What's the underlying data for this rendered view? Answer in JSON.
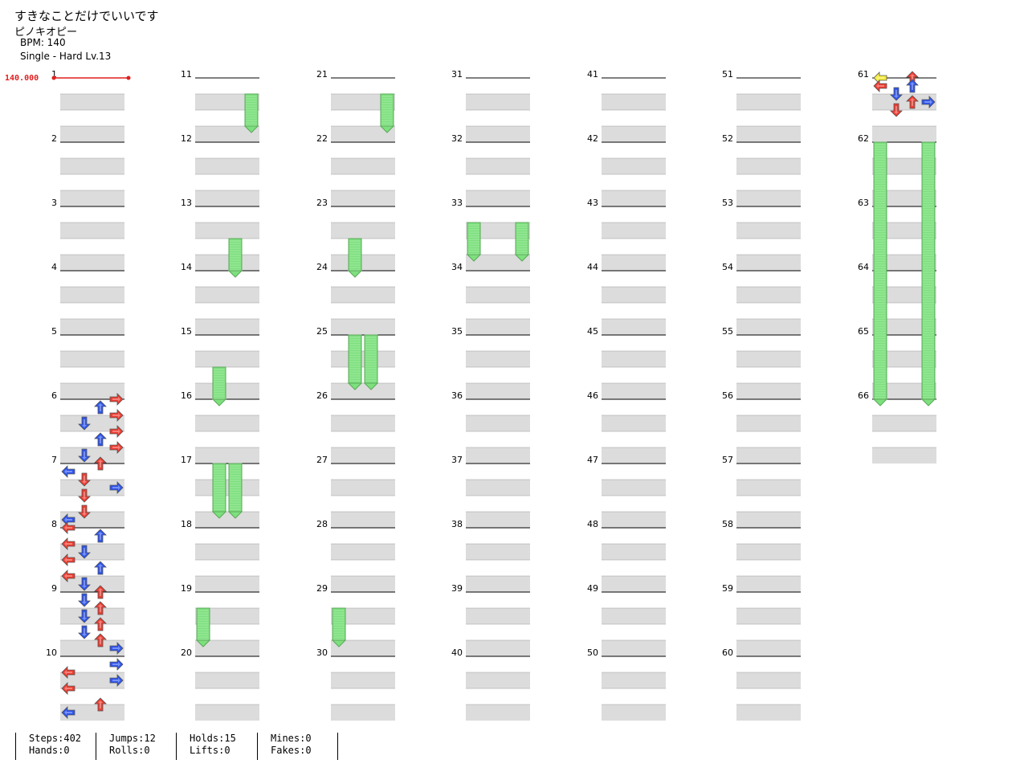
{
  "song": {
    "title": "すきなことだけでいいです",
    "artist": "ピノキオピー",
    "bpm_label": "BPM: 140",
    "difficulty_label": "Single - Hard  Lv.13"
  },
  "bpm_marker": {
    "value": "140.000"
  },
  "colors": {
    "red": "#ef3b2f",
    "blue": "#2d54ee",
    "yellow": "#f7ec3b",
    "hold": "#7de07d",
    "lane_band": "#dcdcdc",
    "measure_line": "#000000",
    "bpm_line": "#e01f1f"
  },
  "chart": {
    "measure_count": 66,
    "measures_per_column": 10,
    "lanes": [
      "left",
      "down",
      "up",
      "right"
    ],
    "arrow_icons": {
      "left": "left-arrow-icon",
      "down": "down-arrow-icon",
      "up": "up-arrow-icon",
      "right": "right-arrow-icon"
    },
    "notes_sample": [
      {
        "measure": 6,
        "beat": 0,
        "lane": "right",
        "color": "red"
      },
      {
        "measure": 6,
        "beat": 0.5,
        "lane": "up",
        "color": "blue"
      },
      {
        "measure": 6,
        "beat": 1,
        "lane": "right",
        "color": "red"
      },
      {
        "measure": 6,
        "beat": 1.5,
        "lane": "down",
        "color": "blue"
      },
      {
        "measure": 6,
        "beat": 2,
        "lane": "right",
        "color": "red"
      },
      {
        "measure": 6,
        "beat": 2.5,
        "lane": "up",
        "color": "blue"
      },
      {
        "measure": 6,
        "beat": 3,
        "lane": "right",
        "color": "red"
      },
      {
        "measure": 6,
        "beat": 3.5,
        "lane": "down",
        "color": "blue"
      },
      {
        "measure": 7,
        "beat": 0,
        "lane": "up",
        "color": "red"
      },
      {
        "measure": 7,
        "beat": 0.5,
        "lane": "left",
        "color": "blue"
      },
      {
        "measure": 7,
        "beat": 1,
        "lane": "down",
        "color": "red"
      },
      {
        "measure": 7,
        "beat": 1.5,
        "lane": "right",
        "color": "blue"
      },
      {
        "measure": 7,
        "beat": 2,
        "lane": "down",
        "color": "red"
      },
      {
        "measure": 7,
        "beat": 3,
        "lane": "down",
        "color": "red"
      },
      {
        "measure": 7,
        "beat": 3.5,
        "lane": "left",
        "color": "blue"
      },
      {
        "measure": 8,
        "beat": 0,
        "lane": "left",
        "color": "red"
      },
      {
        "measure": 8,
        "beat": 0.5,
        "lane": "up",
        "color": "blue"
      },
      {
        "measure": 8,
        "beat": 1,
        "lane": "left",
        "color": "red"
      },
      {
        "measure": 8,
        "beat": 1.5,
        "lane": "down",
        "color": "blue"
      },
      {
        "measure": 8,
        "beat": 2,
        "lane": "left",
        "color": "red"
      },
      {
        "measure": 8,
        "beat": 2.5,
        "lane": "up",
        "color": "blue"
      },
      {
        "measure": 8,
        "beat": 3,
        "lane": "left",
        "color": "red"
      },
      {
        "measure": 8,
        "beat": 3.5,
        "lane": "down",
        "color": "blue"
      },
      {
        "measure": 9,
        "beat": 0,
        "lane": "up",
        "color": "red"
      },
      {
        "measure": 9,
        "beat": 0.5,
        "lane": "down",
        "color": "blue"
      },
      {
        "measure": 9,
        "beat": 1,
        "lane": "up",
        "color": "red"
      },
      {
        "measure": 9,
        "beat": 1.5,
        "lane": "down",
        "color": "blue"
      },
      {
        "measure": 9,
        "beat": 2,
        "lane": "up",
        "color": "red"
      },
      {
        "measure": 9,
        "beat": 2.5,
        "lane": "down",
        "color": "blue"
      },
      {
        "measure": 9,
        "beat": 3,
        "lane": "up",
        "color": "red"
      },
      {
        "measure": 9,
        "beat": 3.5,
        "lane": "right",
        "color": "blue"
      },
      {
        "measure": 10,
        "beat": 0.5,
        "lane": "right",
        "color": "blue"
      },
      {
        "measure": 10,
        "beat": 1,
        "lane": "left",
        "color": "red"
      },
      {
        "measure": 10,
        "beat": 1.5,
        "lane": "right",
        "color": "blue"
      },
      {
        "measure": 10,
        "beat": 2,
        "lane": "left",
        "color": "red"
      },
      {
        "measure": 10,
        "beat": 3,
        "lane": "up",
        "color": "red"
      },
      {
        "measure": 10,
        "beat": 3.5,
        "lane": "left",
        "color": "blue"
      },
      {
        "measure": 61,
        "beat": 0,
        "lane": "left",
        "color": "yellow"
      },
      {
        "measure": 61,
        "beat": 0,
        "lane": "up",
        "color": "red"
      },
      {
        "measure": 61,
        "beat": 0.5,
        "lane": "left",
        "color": "red"
      },
      {
        "measure": 61,
        "beat": 0.5,
        "lane": "up",
        "color": "blue"
      },
      {
        "measure": 61,
        "beat": 1,
        "lane": "down",
        "color": "blue"
      },
      {
        "measure": 61,
        "beat": 1.5,
        "lane": "up",
        "color": "red"
      },
      {
        "measure": 61,
        "beat": 1.5,
        "lane": "right",
        "color": "blue"
      },
      {
        "measure": 61,
        "beat": 2,
        "lane": "down",
        "color": "red"
      }
    ],
    "holds_sample": [
      {
        "measure": 11,
        "beat": 1,
        "lane": "right",
        "beats": 2
      },
      {
        "measure": 13,
        "beat": 2,
        "lane": "up",
        "beats": 2
      },
      {
        "measure": 15,
        "beat": 2,
        "lane": "down",
        "beats": 2
      },
      {
        "measure": 17,
        "beat": 0,
        "lane": "down",
        "beats": 3
      },
      {
        "measure": 17,
        "beat": 0,
        "lane": "up",
        "beats": 3
      },
      {
        "measure": 19,
        "beat": 1,
        "lane": "left",
        "beats": 2
      },
      {
        "measure": 21,
        "beat": 1,
        "lane": "right",
        "beats": 2
      },
      {
        "measure": 23,
        "beat": 2,
        "lane": "down",
        "beats": 2
      },
      {
        "measure": 25,
        "beat": 0,
        "lane": "down",
        "beats": 3
      },
      {
        "measure": 25,
        "beat": 0,
        "lane": "up",
        "beats": 3
      },
      {
        "measure": 29,
        "beat": 1,
        "lane": "left",
        "beats": 2
      },
      {
        "measure": 33,
        "beat": 1,
        "lane": "left",
        "beats": 2
      },
      {
        "measure": 33,
        "beat": 1,
        "lane": "right",
        "beats": 2
      },
      {
        "measure": 62,
        "beat": 0,
        "lane": "left",
        "beats": 16
      },
      {
        "measure": 62,
        "beat": 0,
        "lane": "right",
        "beats": 16
      }
    ]
  },
  "stats": {
    "steps": "Steps:402",
    "hands": "Hands:0",
    "jumps": "Jumps:12",
    "rolls": "Rolls:0",
    "holds": "Holds:15",
    "lifts": "Lifts:0",
    "mines": "Mines:0",
    "fakes": "Fakes:0"
  }
}
